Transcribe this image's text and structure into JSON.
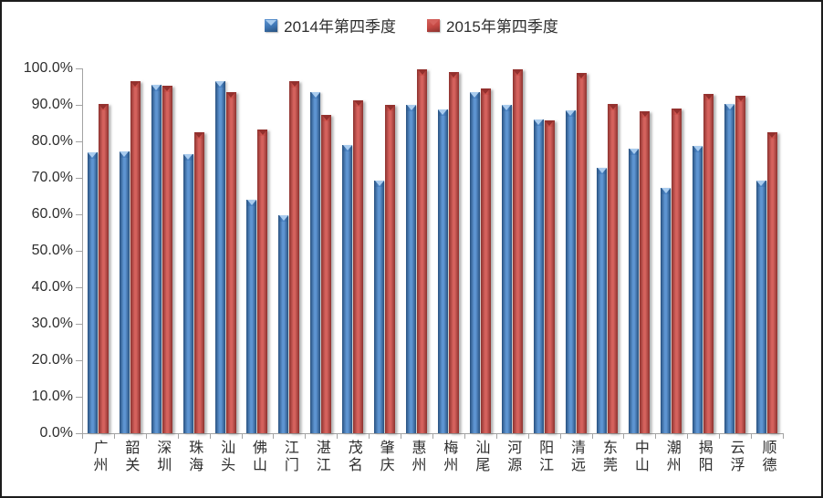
{
  "legend": {
    "items": [
      {
        "label": "2014年第四季度",
        "marker": "beveled-square-icon"
      },
      {
        "label": "2015年第四季度",
        "marker": "beveled-square-icon"
      }
    ],
    "position": "top-center"
  },
  "colors": {
    "series_2014": {
      "main": "#3F76B4",
      "edge": "#28517F",
      "light": "#5E95D2",
      "cap": "#4C84C4",
      "cap_triangle": "#A9CCEF"
    },
    "series_2015": {
      "main": "#C44843",
      "edge": "#8C322F",
      "light": "#D5625D",
      "cap": "#D0554F",
      "cap_triangle": "#93302D"
    },
    "axis": "#A3A3A3",
    "text": "#2E2E2E",
    "frame_border": "#1C1C1C",
    "background": "#FFFFFF"
  },
  "chart_data": {
    "type": "bar",
    "title": "",
    "xlabel": "",
    "ylabel": "",
    "grid": false,
    "legend_position": "top-center",
    "ylim": [
      0,
      100
    ],
    "y_tick_step": 10,
    "y_tick_labels": [
      "100.0%",
      "90.0%",
      "80.0%",
      "70.0%",
      "60.0%",
      "50.0%",
      "40.0%",
      "30.0%",
      "20.0%",
      "10.0%",
      "0.0%"
    ],
    "categories": [
      "广州",
      "韶关",
      "深圳",
      "珠海",
      "汕头",
      "佛山",
      "江门",
      "湛江",
      "茂名",
      "肇庆",
      "惠州",
      "梅州",
      "汕尾",
      "河源",
      "阳江",
      "清远",
      "东莞",
      "中山",
      "潮州",
      "揭阳",
      "云浮",
      "顺德"
    ],
    "series": [
      {
        "name": "2014年第四季度",
        "values": [
          77.0,
          77.2,
          95.6,
          76.6,
          96.6,
          64.1,
          59.7,
          93.4,
          79.1,
          69.3,
          90.0,
          88.7,
          93.6,
          90.1,
          85.9,
          88.5,
          72.7,
          78.1,
          67.3,
          78.8,
          90.3,
          69.2
        ]
      },
      {
        "name": "2015年第四季度",
        "values": [
          90.3,
          96.6,
          95.3,
          82.4,
          93.4,
          83.2,
          96.6,
          87.3,
          91.2,
          89.9,
          99.8,
          99.0,
          94.6,
          99.8,
          85.8,
          98.8,
          90.3,
          88.2,
          88.9,
          93.0,
          92.5,
          82.4
        ]
      }
    ]
  }
}
